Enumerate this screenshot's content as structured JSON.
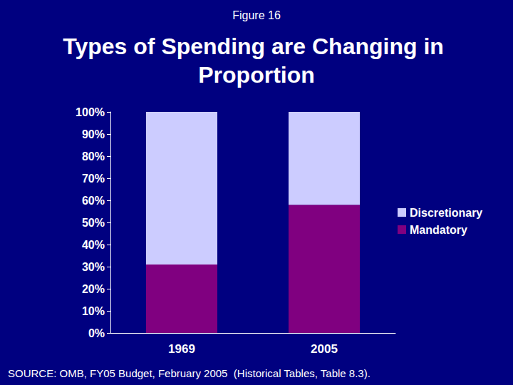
{
  "chart_data": {
    "type": "bar",
    "subtitle": "Figure 16",
    "title": "Types of Spending are Changing in Proportion",
    "annotations": [
      "SOURCE: OMB, FY05 Budget, February 2005  (Historical Tables, Table 8.3)."
    ],
    "categories": [
      "1969",
      "2005"
    ],
    "series": [
      {
        "name": "Mandatory",
        "color": "#800080",
        "values": [
          31,
          58
        ]
      },
      {
        "name": "Discretionary",
        "color": "#CCCCFF",
        "values": [
          69,
          42
        ]
      }
    ],
    "stacked": true,
    "legend": "right",
    "grid": false,
    "ylim": [
      0,
      100
    ],
    "yticks": [
      {
        "value": 0,
        "label": "0%"
      },
      {
        "value": 10,
        "label": "10%"
      },
      {
        "value": 20,
        "label": "20%"
      },
      {
        "value": 30,
        "label": "30%"
      },
      {
        "value": 40,
        "label": "40%"
      },
      {
        "value": 50,
        "label": "50%"
      },
      {
        "value": 60,
        "label": "60%"
      },
      {
        "value": 70,
        "label": "70%"
      },
      {
        "value": 80,
        "label": "80%"
      },
      {
        "value": 90,
        "label": "90%"
      },
      {
        "value": 100,
        "label": "100%"
      }
    ]
  }
}
